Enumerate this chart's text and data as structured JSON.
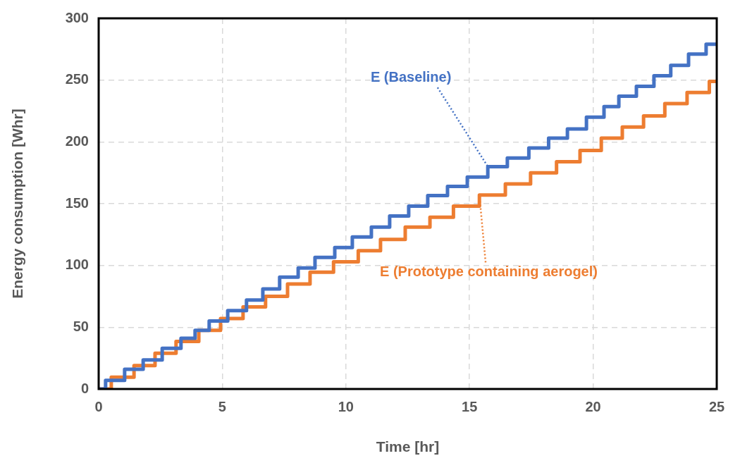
{
  "chart_data": {
    "type": "step",
    "xlabel": "Time [hr]",
    "ylabel": "Energy consumption [Whr]",
    "xlim": [
      0,
      25
    ],
    "xticks": [
      0,
      5,
      10,
      15,
      20,
      25
    ],
    "ylim": [
      0,
      300
    ],
    "yticks": [
      0,
      50,
      100,
      150,
      200,
      250,
      300
    ],
    "grid": true,
    "legend": false,
    "marker": "none",
    "series": [
      {
        "name": "E (Baseline)",
        "color": "#4472c4",
        "x": [
          0,
          0.28,
          1.05,
          1.8,
          2.57,
          3.33,
          3.9,
          4.47,
          5.22,
          5.98,
          6.64,
          7.32,
          8.07,
          8.75,
          9.55,
          10.26,
          11.03,
          11.77,
          12.54,
          13.31,
          14.11,
          14.91,
          15.74,
          16.53,
          17.4,
          18.2,
          18.96,
          19.73,
          20.44,
          21.04,
          21.75,
          22.46,
          23.14,
          23.86,
          24.57,
          25
        ],
        "values": [
          0,
          7,
          16,
          23.5,
          33,
          41,
          47.5,
          55,
          63.5,
          72,
          81,
          90.5,
          98,
          106.5,
          114.5,
          123,
          131,
          140,
          148,
          156.5,
          164,
          171.5,
          180,
          187,
          195,
          203,
          210.5,
          220,
          228.5,
          237,
          245,
          253.5,
          262,
          271,
          279,
          279
        ]
      },
      {
        "name": "E (Prototype containing aerogel)",
        "color": "#ed7d31",
        "x": [
          0,
          0.51,
          1.43,
          2.28,
          3.13,
          4.05,
          4.93,
          5.84,
          6.75,
          7.64,
          8.55,
          9.5,
          10.5,
          11.4,
          12.4,
          13.4,
          14.35,
          15.4,
          16.45,
          17.47,
          18.52,
          19.47,
          20.33,
          21.18,
          22.04,
          22.9,
          23.8,
          24.7,
          25
        ],
        "values": [
          0,
          9.5,
          19,
          29,
          38.5,
          47.5,
          57,
          66.5,
          75,
          85,
          94.5,
          103,
          112,
          121,
          131,
          139,
          148,
          157,
          166,
          175,
          184,
          193,
          203,
          212,
          221,
          231,
          240,
          249,
          249
        ]
      }
    ]
  }
}
